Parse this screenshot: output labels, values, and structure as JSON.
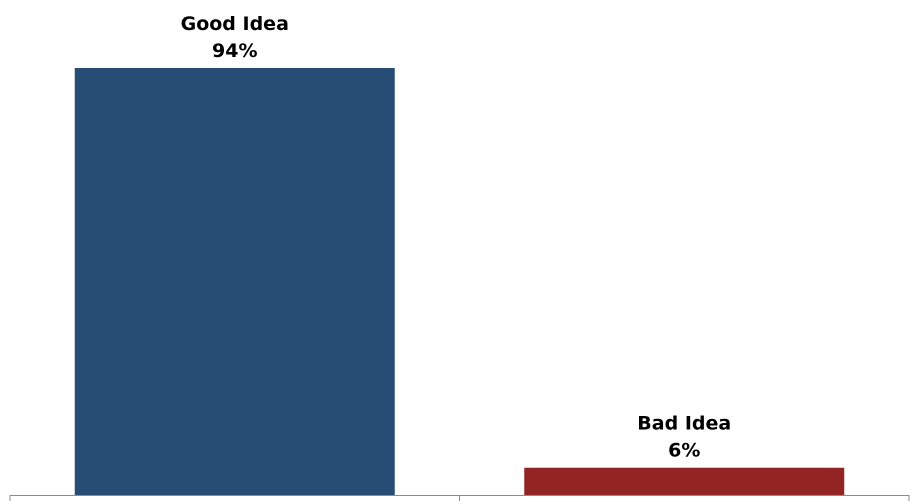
{
  "chart_data": {
    "type": "bar",
    "categories": [
      "Good Idea",
      "Bad Idea"
    ],
    "values": [
      94,
      6
    ],
    "value_labels": [
      "94%",
      "6%"
    ],
    "colors": [
      "#284d75",
      "#922424"
    ],
    "ylim": [
      0,
      94
    ],
    "grid": false,
    "legend": "none",
    "title": "",
    "xlabel": "",
    "ylabel": ""
  }
}
